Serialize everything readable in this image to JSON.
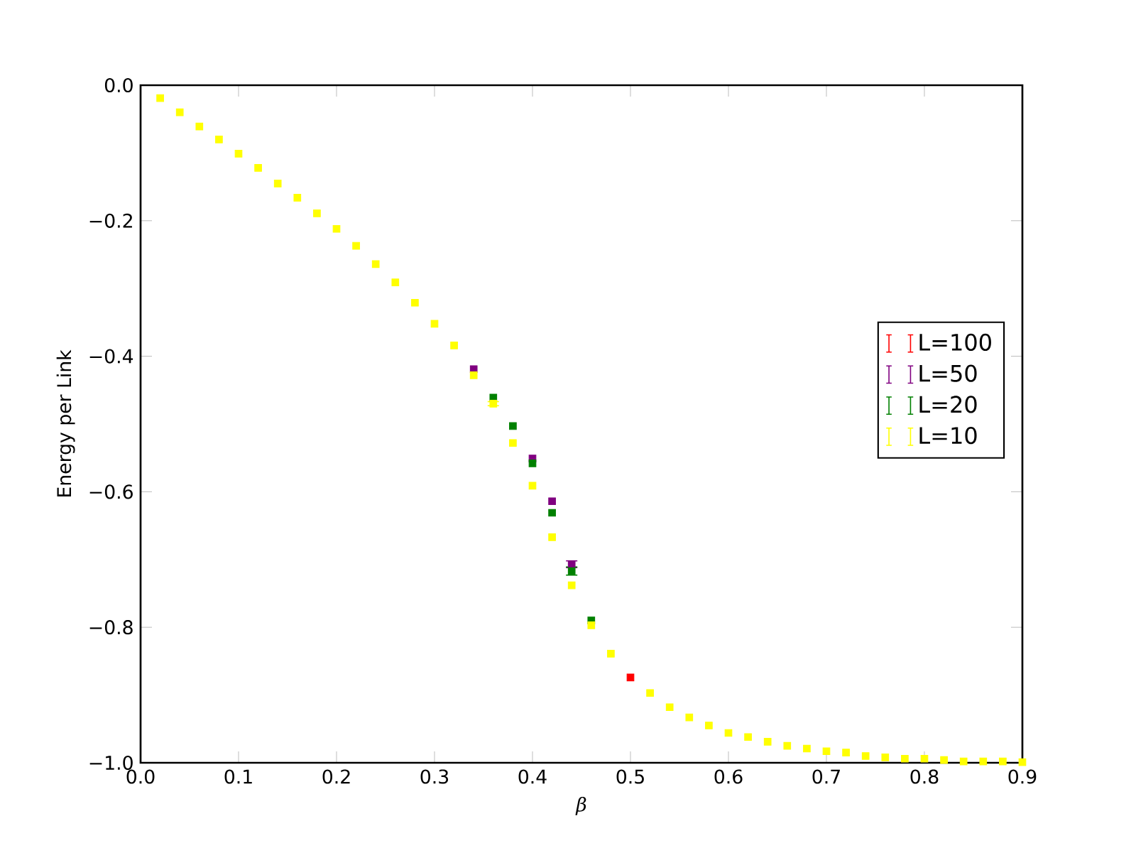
{
  "chart_data": {
    "type": "scatter",
    "xlabel": "β",
    "ylabel": "Energy per Link",
    "legend": "center right",
    "grid": false,
    "marker": "square",
    "x": [
      0.02,
      0.04,
      0.06,
      0.08,
      0.1,
      0.12,
      0.14,
      0.16,
      0.18,
      0.2,
      0.22,
      0.24,
      0.26,
      0.28,
      0.3,
      0.32,
      0.34,
      0.36,
      0.38,
      0.4,
      0.42,
      0.44,
      0.46,
      0.48,
      0.5,
      0.52,
      0.54,
      0.56,
      0.58,
      0.6,
      0.62,
      0.64,
      0.66,
      0.68,
      0.7,
      0.72,
      0.74,
      0.76,
      0.78,
      0.8,
      0.82,
      0.84,
      0.86,
      0.88,
      0.9
    ],
    "series": [
      {
        "name": "L=100",
        "color": "#ff0000",
        "values": [
          null,
          null,
          null,
          null,
          null,
          null,
          null,
          null,
          null,
          null,
          null,
          null,
          null,
          null,
          null,
          null,
          null,
          null,
          null,
          null,
          null,
          null,
          null,
          null,
          -0.874,
          null,
          null,
          null,
          null,
          null,
          null,
          null,
          null,
          null,
          null,
          null,
          null,
          null,
          null,
          null,
          null,
          null,
          null,
          null,
          null
        ]
      },
      {
        "name": "L=50",
        "color": "#800080",
        "values": [
          null,
          null,
          null,
          null,
          null,
          null,
          null,
          null,
          null,
          null,
          null,
          null,
          null,
          null,
          null,
          null,
          -0.419,
          null,
          null,
          -0.551,
          -0.614,
          -0.707,
          null,
          null,
          null,
          null,
          null,
          null,
          null,
          null,
          null,
          null,
          null,
          null,
          null,
          null,
          null,
          null,
          null,
          null,
          null,
          null,
          null,
          null,
          null
        ],
        "errors": [
          null,
          null,
          null,
          null,
          null,
          null,
          null,
          null,
          null,
          null,
          null,
          null,
          null,
          null,
          null,
          null,
          null,
          null,
          null,
          null,
          null,
          0.005,
          null,
          null,
          null,
          null,
          null,
          null,
          null,
          null,
          null,
          null,
          null,
          null,
          null,
          null,
          null,
          null,
          null,
          null,
          null,
          null,
          null,
          null,
          null
        ]
      },
      {
        "name": "L=20",
        "color": "#008000",
        "values": [
          null,
          null,
          null,
          null,
          null,
          null,
          null,
          null,
          null,
          null,
          null,
          null,
          null,
          null,
          null,
          null,
          null,
          -0.461,
          -0.503,
          -0.558,
          -0.631,
          -0.717,
          -0.79,
          null,
          null,
          null,
          null,
          null,
          null,
          null,
          null,
          null,
          null,
          null,
          null,
          null,
          null,
          null,
          null,
          null,
          null,
          null,
          null,
          null,
          null
        ],
        "errors": [
          null,
          null,
          null,
          null,
          null,
          null,
          null,
          null,
          null,
          null,
          null,
          null,
          null,
          null,
          null,
          null,
          null,
          null,
          null,
          null,
          null,
          0.006,
          null,
          null,
          null,
          null,
          null,
          null,
          null,
          null,
          null,
          null,
          null,
          null,
          null,
          null,
          null,
          null,
          null,
          null,
          null,
          null,
          null,
          null,
          null
        ]
      },
      {
        "name": "L=10",
        "color": "#ffff00",
        "values": [
          -0.019,
          -0.04,
          -0.061,
          -0.08,
          -0.101,
          -0.122,
          -0.145,
          -0.166,
          -0.189,
          -0.212,
          -0.237,
          -0.264,
          -0.291,
          -0.321,
          -0.352,
          -0.384,
          -0.428,
          -0.47,
          -0.528,
          -0.591,
          -0.667,
          -0.738,
          -0.797,
          -0.839,
          null,
          -0.897,
          -0.918,
          -0.933,
          -0.945,
          -0.956,
          -0.962,
          -0.969,
          -0.975,
          -0.979,
          -0.983,
          -0.985,
          -0.99,
          -0.992,
          -0.994,
          -0.994,
          -0.996,
          -0.998,
          -0.998,
          -0.998,
          -0.999
        ],
        "errors": [
          null,
          null,
          null,
          null,
          null,
          null,
          null,
          null,
          null,
          null,
          null,
          null,
          null,
          null,
          null,
          null,
          null,
          0.003,
          null,
          null,
          null,
          null,
          null,
          null,
          null,
          null,
          null,
          null,
          null,
          null,
          null,
          null,
          null,
          null,
          null,
          null,
          null,
          null,
          null,
          null,
          null,
          null,
          null,
          null,
          null
        ]
      }
    ],
    "xlim": [
      0,
      0.9
    ],
    "ylim": [
      -1.0,
      0.0
    ],
    "xticks": [
      {
        "value": 0,
        "label": "0.0"
      },
      {
        "value": 0.1,
        "label": "0.1"
      },
      {
        "value": 0.2,
        "label": "0.2"
      },
      {
        "value": 0.3,
        "label": "0.3"
      },
      {
        "value": 0.4,
        "label": "0.4"
      },
      {
        "value": 0.5,
        "label": "0.5"
      },
      {
        "value": 0.6,
        "label": "0.6"
      },
      {
        "value": 0.7,
        "label": "0.7"
      },
      {
        "value": 0.8,
        "label": "0.8"
      },
      {
        "value": 0.9,
        "label": "0.9"
      }
    ],
    "yticks": [
      {
        "value": -1.0,
        "label": "−1.0"
      },
      {
        "value": -0.8,
        "label": "−0.8"
      },
      {
        "value": -0.6,
        "label": "−0.6"
      },
      {
        "value": -0.4,
        "label": "−0.4"
      },
      {
        "value": -0.2,
        "label": "−0.2"
      },
      {
        "value": 0,
        "label": "0.0"
      }
    ]
  }
}
